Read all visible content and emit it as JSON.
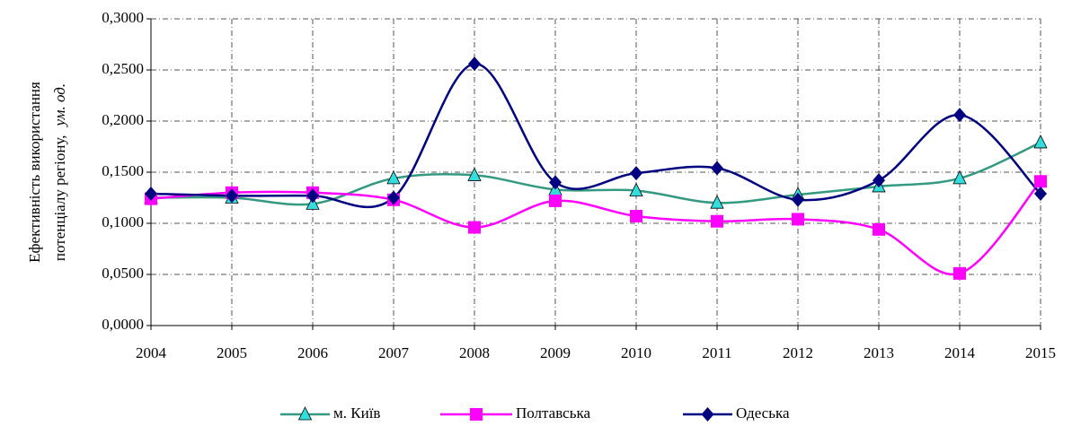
{
  "chart_data": {
    "type": "line",
    "y_label": [
      "Ефективність використання",
      "потенціалу регіону,"
    ],
    "y_unit": "ум. од.",
    "categories": [
      "2004",
      "2005",
      "2006",
      "2007",
      "2008",
      "2009",
      "2010",
      "2011",
      "2012",
      "2013",
      "2014",
      "2015"
    ],
    "series": [
      {
        "name": "м. Київ",
        "color": "#339980",
        "marker": "triangle",
        "marker_color": "#33dddd",
        "values": [
          0.125,
          0.125,
          0.119,
          0.144,
          0.147,
          0.133,
          0.132,
          0.12,
          0.128,
          0.136,
          0.144,
          0.179
        ]
      },
      {
        "name": "Полтавська",
        "color": "#ff00ff",
        "marker": "square",
        "marker_color": "#ff00ff",
        "values": [
          0.124,
          0.13,
          0.13,
          0.123,
          0.096,
          0.122,
          0.107,
          0.102,
          0.104,
          0.094,
          0.051,
          0.141
        ]
      },
      {
        "name": "Одеська",
        "color": "#000080",
        "marker": "diamond",
        "marker_color": "#000080",
        "values": [
          0.129,
          0.127,
          0.127,
          0.125,
          0.256,
          0.14,
          0.149,
          0.154,
          0.123,
          0.142,
          0.206,
          0.129
        ]
      }
    ],
    "ylim": [
      0,
      0.3
    ],
    "yticks": [
      {
        "value": 0,
        "label": "0,0000"
      },
      {
        "value": 0.05,
        "label": "0,0500"
      },
      {
        "value": 0.1,
        "label": "0,1000"
      },
      {
        "value": 0.15,
        "label": "0,1500"
      },
      {
        "value": 0.2,
        "label": "0,2000"
      },
      {
        "value": 0.25,
        "label": "0,2500"
      },
      {
        "value": 0.3,
        "label": "0,3000"
      }
    ],
    "grid": true,
    "smooth": true,
    "legend": "bottom"
  }
}
